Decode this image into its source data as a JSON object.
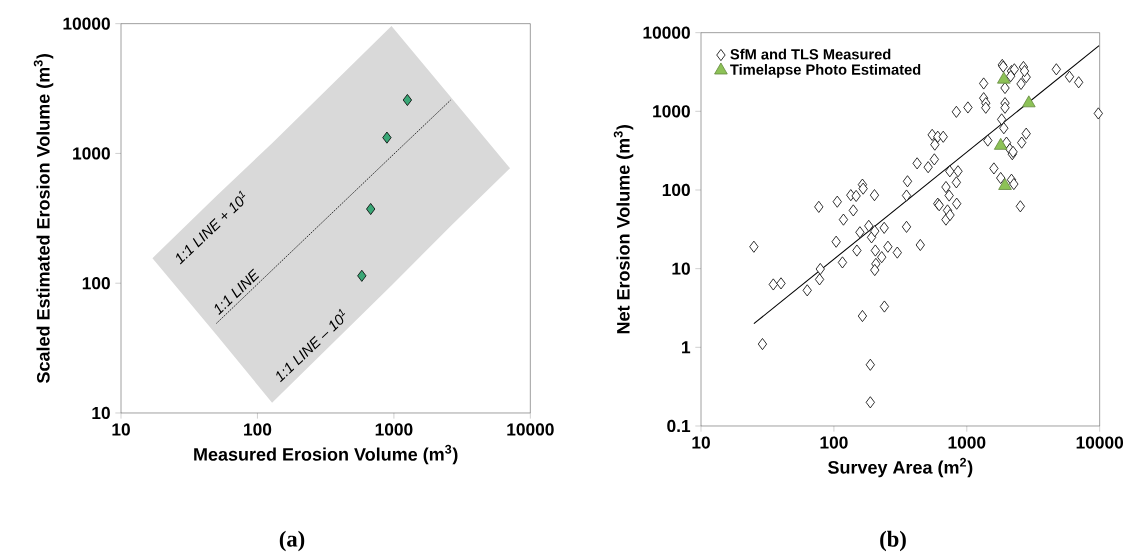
{
  "chart_data": [
    {
      "type": "scatter",
      "xlabel": "Measured Erosion Volume (m$^{3}$)",
      "ylabel": "Scaled Estimated Erosion Volume (m$^{3}$)",
      "log": "xy",
      "xlim": [
        10,
        10000
      ],
      "ylim": [
        10,
        10000
      ],
      "xticks": [
        10,
        100,
        1000,
        10000
      ],
      "yticks": [
        10,
        100,
        1000,
        10000
      ],
      "series": [
        {
          "type": "line",
          "line_style": "dotted",
          "color": "#000000",
          "x": [
            17,
            50,
            128,
            960,
            2600,
            7100
          ],
          "values": [
            null,
            49,
            126,
            950,
            2570,
            null
          ],
          "lower": [
            156,
            40,
            12,
            96,
            275,
            770
          ],
          "upper": [
            156,
            470,
            1200,
            9600,
            2730,
            770
          ]
        },
        {
          "marker": "diamond",
          "color": "#3aa776",
          "x": [
            582,
            676,
            889,
            1256
          ],
          "values": [
            114,
            373,
            1324,
            2580
          ]
        }
      ],
      "annotations": [
        "1:1 LINE + 10$^{1}$",
        "1:1 LINE",
        "1:1 LINE – 10$^{1}$",
        "(a)"
      ]
    },
    {
      "type": "scatter",
      "xlabel": "Survey Area (m$^{2}$)",
      "ylabel": "Net Erosion Volume (m$^{3}$)",
      "log": "xy",
      "xlim": [
        10,
        10000
      ],
      "ylim": [
        0.1,
        10000
      ],
      "xticks": [
        10,
        100,
        1000,
        10000
      ],
      "yticks": [
        0.1,
        1,
        10,
        100,
        1000,
        10000
      ],
      "legend": "top left",
      "series": [
        {
          "name": "SfM and TLS Measured",
          "marker": "diamond",
          "color": "#ffffff",
          "x": [
            25,
            35,
            40,
            63,
            78,
            79,
            77,
            106,
            104,
            116,
            118,
            134,
            140,
            147,
            164,
            166,
            157,
            149,
            183,
            192,
            202,
            203,
            205,
            229,
            207,
            203,
            239,
            255,
            300,
            164,
            240,
            29,
            188,
            188,
            352,
            358,
            352,
            423,
            447,
            512,
            570,
            549,
            575,
            605,
            665,
            605,
            620,
            697,
            737,
            716,
            697,
            748,
            745,
            859,
            835,
            840,
            835,
            1020,
            1340,
            1340,
            1390,
            1390,
            1440,
            1600,
            1800,
            1830,
            1900,
            1850,
            1880,
            1940,
            1940,
            1940,
            1990,
            2110,
            2200,
            2230,
            2170,
            2260,
            2170,
            2280,
            2140,
            2530,
            2590,
            2800,
            2560,
            2670,
            2800,
            2720,
            4720,
            5930,
            6950,
            9770
          ],
          "values": [
            19,
            6.3,
            6.5,
            5.3,
            7.3,
            9.9,
            61,
            71,
            22,
            12,
            42,
            86,
            55,
            84,
            117,
            104,
            29,
            17,
            35,
            25,
            86,
            30,
            17,
            14,
            11.5,
            9.6,
            33,
            19,
            16,
            2.5,
            3.3,
            1.1,
            0.6,
            0.2,
            85,
            129,
            34,
            218,
            20,
            195,
            245,
            502,
            377,
            475,
            475,
            67,
            64,
            109,
            85,
            55,
            42,
            48,
            173,
            173,
            125,
            67,
            985,
            1120,
            2260,
            1470,
            1270,
            1110,
            425,
            188,
            142,
            790,
            610,
            3890,
            3700,
            1980,
            1270,
            1110,
            400,
            330,
            285,
            305,
            135,
            119,
            3250,
            3420,
            2800,
            62,
            400,
            520,
            2230,
            3660,
            2720,
            3250,
            3420,
            2750,
            2340,
            940
          ]
        },
        {
          "type": "line",
          "color": "#000000",
          "line_style": "solid",
          "x": [
            25,
            9900
          ],
          "values": [
            2,
            6850
          ]
        },
        {
          "name": "Timelapse Photo Estimated",
          "marker": "triangle",
          "color": "#8dc257",
          "x": [
            1900,
            2930,
            1800,
            1940
          ],
          "values": [
            2540,
            1270,
            366,
            113
          ]
        }
      ],
      "annotations": [
        "(b)"
      ]
    }
  ]
}
